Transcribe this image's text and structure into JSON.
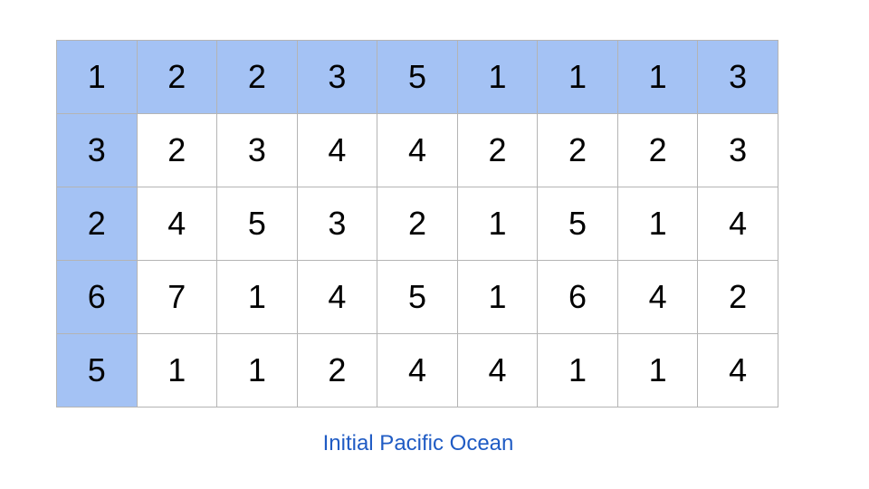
{
  "grid": {
    "rows": [
      [
        1,
        2,
        2,
        3,
        5,
        1,
        1,
        1,
        3
      ],
      [
        3,
        2,
        3,
        4,
        4,
        2,
        2,
        2,
        3
      ],
      [
        2,
        4,
        5,
        3,
        2,
        1,
        5,
        1,
        4
      ],
      [
        6,
        7,
        1,
        4,
        5,
        1,
        6,
        4,
        2
      ],
      [
        5,
        1,
        1,
        2,
        4,
        4,
        1,
        1,
        4
      ]
    ],
    "highlight_color": "#a4c2f4",
    "highlighted_cells": "first row and first column"
  },
  "caption": "Initial Pacific Ocean",
  "colors": {
    "caption": "#1f5bc4",
    "border": "#b4b4b4"
  }
}
